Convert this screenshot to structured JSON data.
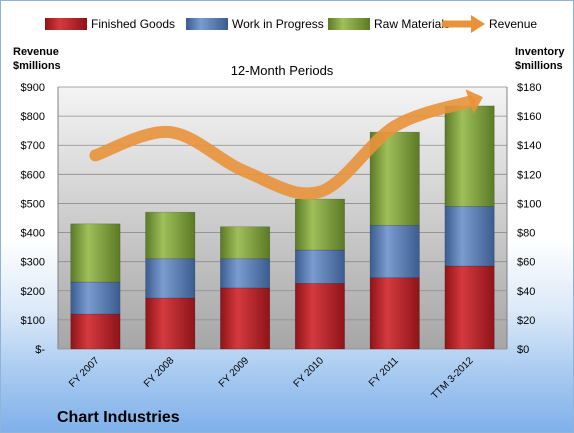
{
  "chart_data": {
    "type": "bar",
    "stacked": true,
    "title": "12-Month Periods",
    "categories": [
      "FY 2007",
      "FY 2008",
      "FY 2009",
      "FY 2010",
      "FY 2011",
      "TTM 3-2012"
    ],
    "series": [
      {
        "name": "Finished Goods",
        "axis": "left",
        "color": "#c0282d",
        "values": [
          120,
          175,
          210,
          225,
          245,
          285
        ]
      },
      {
        "name": "Work in Progress",
        "axis": "left",
        "color": "#5b81bb",
        "values": [
          110,
          135,
          100,
          115,
          180,
          205
        ]
      },
      {
        "name": "Raw Materials",
        "axis": "left",
        "color": "#8aab45",
        "values": [
          200,
          160,
          110,
          175,
          320,
          345
        ]
      },
      {
        "name": "Revenue",
        "axis": "right",
        "type": "line",
        "color": "#e8923a",
        "values": [
          133,
          149,
          122,
          108,
          153,
          170
        ]
      }
    ],
    "left_axis": {
      "label_line1": "Revenue",
      "label_line2": "$millions",
      "ylim": [
        0,
        900
      ],
      "step": 100,
      "tick_labels": [
        "$-",
        "$100",
        "$200",
        "$300",
        "$400",
        "$500",
        "$600",
        "$700",
        "$800",
        "$900"
      ]
    },
    "right_axis": {
      "label_line1": "Inventory",
      "label_line2": "$millions",
      "ylim": [
        0,
        180
      ],
      "step": 20,
      "tick_labels": [
        "$0",
        "$20",
        "$40",
        "$60",
        "$80",
        "$100",
        "$120",
        "$140",
        "$160",
        "$180"
      ]
    },
    "grid": true,
    "legend_position": "top",
    "footer": "Chart Industries"
  }
}
